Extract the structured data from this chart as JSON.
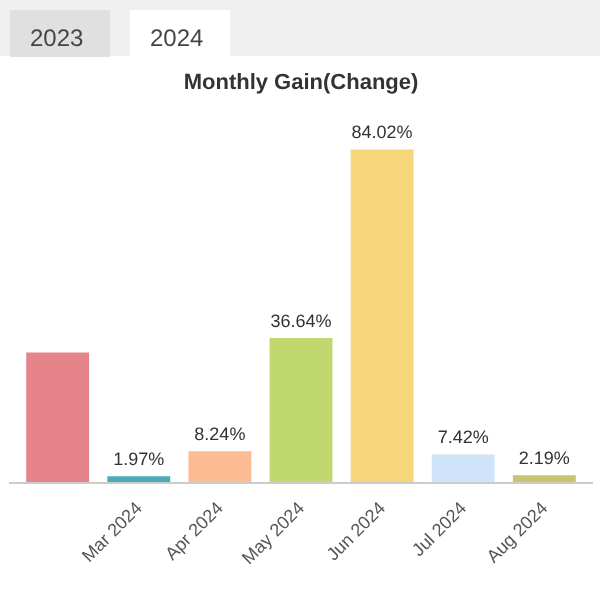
{
  "chart_data": {
    "type": "bar",
    "title": "Monthly Gain(Change)",
    "annotations": [
      "2023",
      "2024"
    ],
    "categories": [
      null,
      "Mar 2024",
      "Apr 2024",
      "May 2024",
      "Jun 2024",
      "Jul 2024",
      "Aug 2024"
    ],
    "values": [
      33,
      1.97,
      8.24,
      36.64,
      84.02,
      7.42,
      2.19
    ],
    "value_labels": [
      null,
      "1.97%",
      "8.24%",
      "36.64%",
      "84.02%",
      "7.42%",
      "2.19%"
    ],
    "colors": [
      "#e5848a",
      "#4bacb8",
      "#fdbb94",
      "#c0d86e",
      "#f7d57a",
      "#cfe4fa",
      "#c9c46e"
    ],
    "grid": false
  }
}
